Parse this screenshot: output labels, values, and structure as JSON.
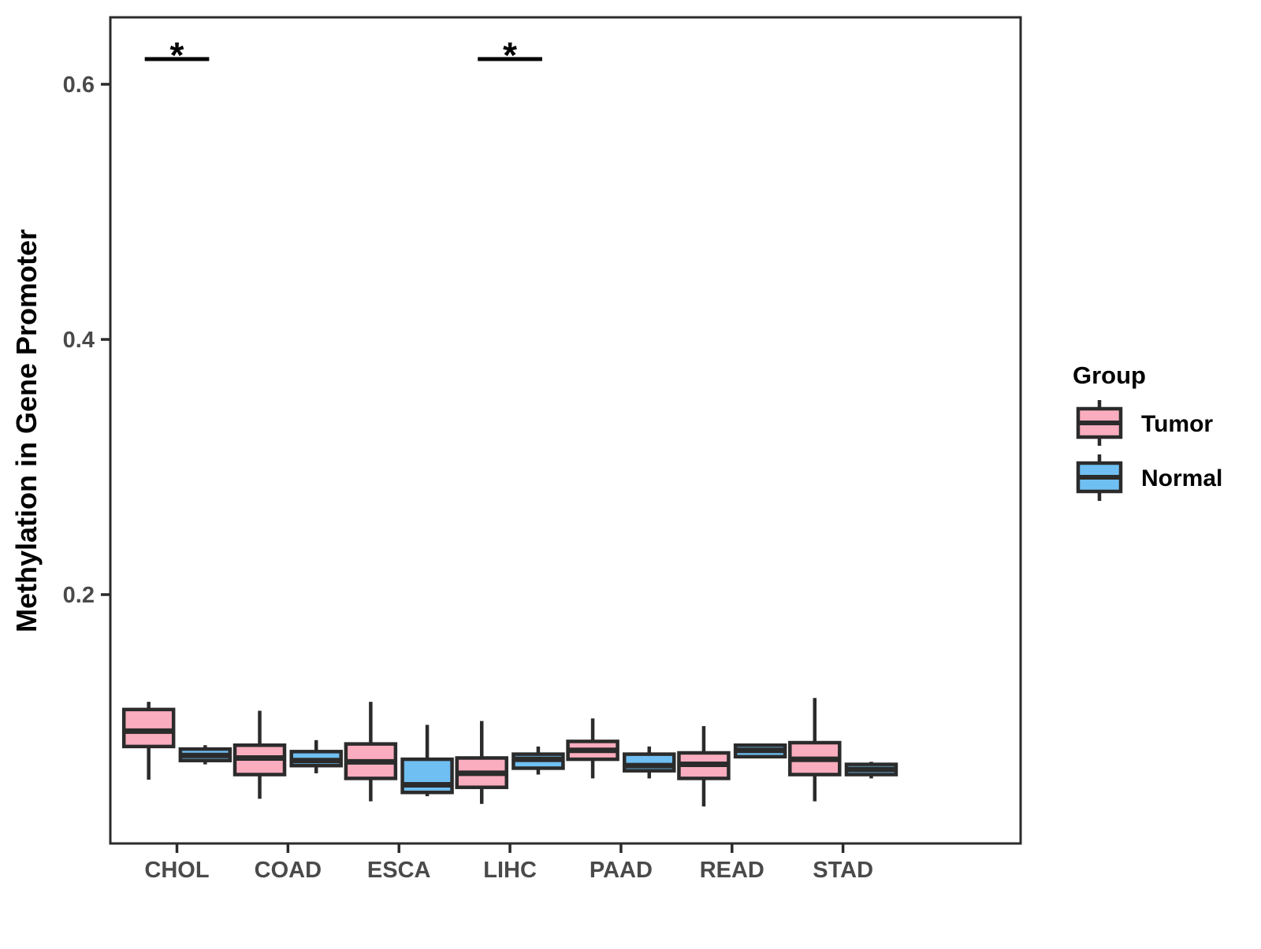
{
  "figure": {
    "background": "#ffffff"
  },
  "y_axis": {
    "title": "Methylation in Gene Promoter",
    "tick_labels": [
      "0.2",
      "0.4",
      "0.6"
    ]
  },
  "x_axis": {
    "categories": [
      "CHOL",
      "COAD",
      "ESCA",
      "LIHC",
      "PAAD",
      "READ",
      "STAD"
    ]
  },
  "legend": {
    "title": "Group",
    "position": "right",
    "items": [
      {
        "label": "Tumor",
        "color": "#FAADBE"
      },
      {
        "label": "Normal",
        "color": "#70BFF2"
      }
    ]
  },
  "colors": {
    "tumor_fill": "#FAADBE",
    "normal_fill": "#70BFF2",
    "box_stroke": "#2B2B2B",
    "axis_text": "#4A4A4A",
    "significance": "#000000"
  },
  "chart_data": {
    "type": "boxplot",
    "categories": [
      "CHOL",
      "COAD",
      "ESCA",
      "LIHC",
      "PAAD",
      "READ",
      "STAD"
    ],
    "ylabel": "Methylation in Gene Promoter",
    "ylim": [
      0.005,
      0.6525
    ],
    "yticks": [
      0.2,
      0.4,
      0.6
    ],
    "grid": false,
    "legend_position": "right",
    "series": [
      {
        "name": "Tumor",
        "color": "#FAADBE",
        "boxes": [
          {
            "category": "CHOL",
            "low": 0.055,
            "q1": 0.081,
            "median": 0.093,
            "q3": 0.11,
            "high": 0.116
          },
          {
            "category": "COAD",
            "low": 0.04,
            "q1": 0.059,
            "median": 0.072,
            "q3": 0.082,
            "high": 0.109
          },
          {
            "category": "ESCA",
            "low": 0.038,
            "q1": 0.056,
            "median": 0.069,
            "q3": 0.083,
            "high": 0.116
          },
          {
            "category": "LIHC",
            "low": 0.036,
            "q1": 0.049,
            "median": 0.06,
            "q3": 0.072,
            "high": 0.101
          },
          {
            "category": "PAAD",
            "low": 0.056,
            "q1": 0.071,
            "median": 0.078,
            "q3": 0.085,
            "high": 0.103
          },
          {
            "category": "READ",
            "low": 0.034,
            "q1": 0.056,
            "median": 0.067,
            "q3": 0.076,
            "high": 0.097
          },
          {
            "category": "STAD",
            "low": 0.038,
            "q1": 0.059,
            "median": 0.071,
            "q3": 0.084,
            "high": 0.119
          }
        ]
      },
      {
        "name": "Normal",
        "color": "#70BFF2",
        "boxes": [
          {
            "category": "CHOL",
            "low": 0.067,
            "q1": 0.07,
            "median": 0.074,
            "q3": 0.079,
            "high": 0.082
          },
          {
            "category": "COAD",
            "low": 0.06,
            "q1": 0.066,
            "median": 0.07,
            "q3": 0.077,
            "high": 0.086
          },
          {
            "category": "ESCA",
            "low": 0.042,
            "q1": 0.045,
            "median": 0.051,
            "q3": 0.071,
            "high": 0.098
          },
          {
            "category": "LIHC",
            "low": 0.059,
            "q1": 0.064,
            "median": 0.071,
            "q3": 0.075,
            "high": 0.081
          },
          {
            "category": "PAAD",
            "low": 0.056,
            "q1": 0.062,
            "median": 0.066,
            "q3": 0.075,
            "high": 0.081
          },
          {
            "category": "READ",
            "low": 0.072,
            "q1": 0.073,
            "median": 0.078,
            "q3": 0.082,
            "high": 0.083
          },
          {
            "category": "STAD",
            "low": 0.056,
            "q1": 0.059,
            "median": 0.063,
            "q3": 0.067,
            "high": 0.069
          }
        ]
      }
    ],
    "significance": [
      {
        "category": "CHOL",
        "label": "*"
      },
      {
        "category": "LIHC",
        "label": "*"
      }
    ]
  }
}
